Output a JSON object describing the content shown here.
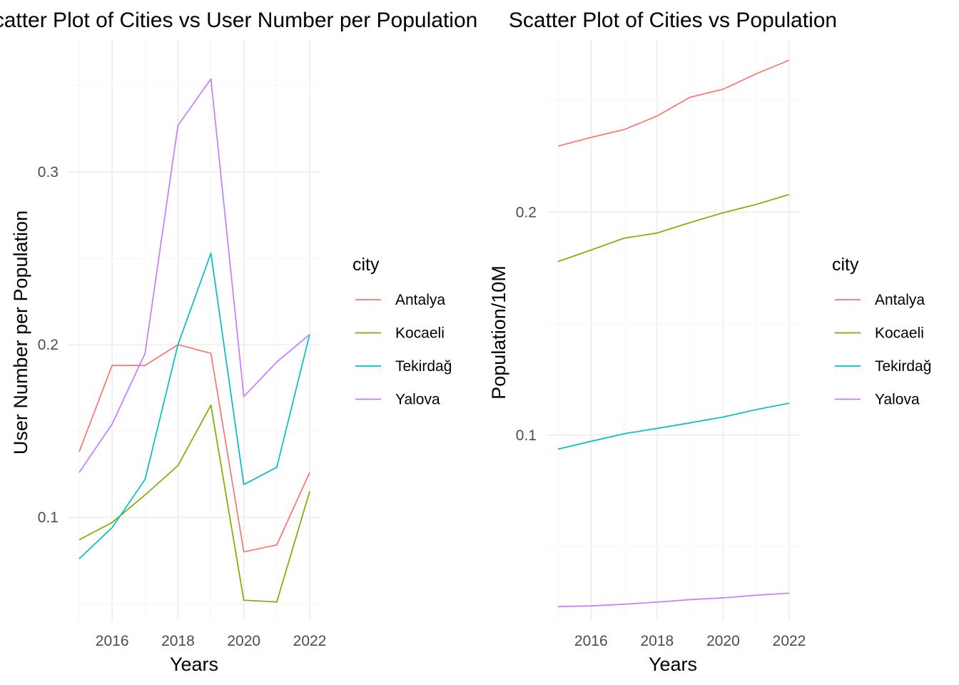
{
  "chart_data": [
    {
      "type": "line",
      "title": "Scatter Plot of Cities vs User Number per Population",
      "xlabel": "Years",
      "ylabel": "User Number per Population",
      "xlim": [
        2015,
        2022
      ],
      "ylim": [
        0.05,
        0.36
      ],
      "x_ticks": [
        2016,
        2018,
        2020,
        2022
      ],
      "y_ticks": [
        0.1,
        0.2,
        0.3
      ],
      "grid": true,
      "legend": {
        "title": "city",
        "position": "right"
      },
      "x": [
        2015,
        2016,
        2017,
        2018,
        2019,
        2020,
        2021,
        2022
      ],
      "series": [
        {
          "name": "Antalya",
          "color": "#F8766D",
          "values": [
            0.138,
            0.188,
            0.188,
            0.2,
            0.195,
            0.08,
            0.084,
            0.126
          ]
        },
        {
          "name": "Kocaeli",
          "color": "#7CAE00",
          "values": [
            0.087,
            0.097,
            0.113,
            0.13,
            0.165,
            0.052,
            0.051,
            0.115
          ]
        },
        {
          "name": "Tekirdağ",
          "color": "#00BFC4",
          "values": [
            0.076,
            0.094,
            0.122,
            0.2,
            0.253,
            0.119,
            0.129,
            0.206
          ]
        },
        {
          "name": "Yalova",
          "color": "#C77CFF",
          "values": [
            0.126,
            0.154,
            0.195,
            0.327,
            0.354,
            0.17,
            0.19,
            0.206
          ]
        }
      ]
    },
    {
      "type": "line",
      "title": "Scatter Plot of Cities vs Population",
      "xlabel": "Years",
      "ylabel": "Population/10M",
      "xlim": [
        2015,
        2022
      ],
      "ylim": [
        0.0244,
        0.2644
      ],
      "x_ticks": [
        2016,
        2018,
        2020,
        2022
      ],
      "y_ticks": [
        0.1,
        0.2
      ],
      "grid": true,
      "legend": {
        "title": "city",
        "position": "right"
      },
      "x": [
        2015,
        2016,
        2017,
        2018,
        2019,
        2020,
        2021,
        2022
      ],
      "series": [
        {
          "name": "Antalya",
          "color": "#F8766D",
          "values": [
            0.2296,
            0.2335,
            0.237,
            0.2431,
            0.2515,
            0.2551,
            0.262,
            0.2681
          ]
        },
        {
          "name": "Kocaeli",
          "color": "#7CAE00",
          "values": [
            0.1778,
            0.183,
            0.1883,
            0.1906,
            0.1953,
            0.1997,
            0.2034,
            0.2079
          ]
        },
        {
          "name": "Tekirdağ",
          "color": "#00BFC4",
          "values": [
            0.0937,
            0.0972,
            0.1006,
            0.103,
            0.1055,
            0.1081,
            0.1114,
            0.1143
          ]
        },
        {
          "name": "Yalova",
          "color": "#C77CFF",
          "values": [
            0.0231,
            0.0234,
            0.0241,
            0.0251,
            0.0262,
            0.027,
            0.0282,
            0.0291
          ]
        }
      ]
    }
  ]
}
